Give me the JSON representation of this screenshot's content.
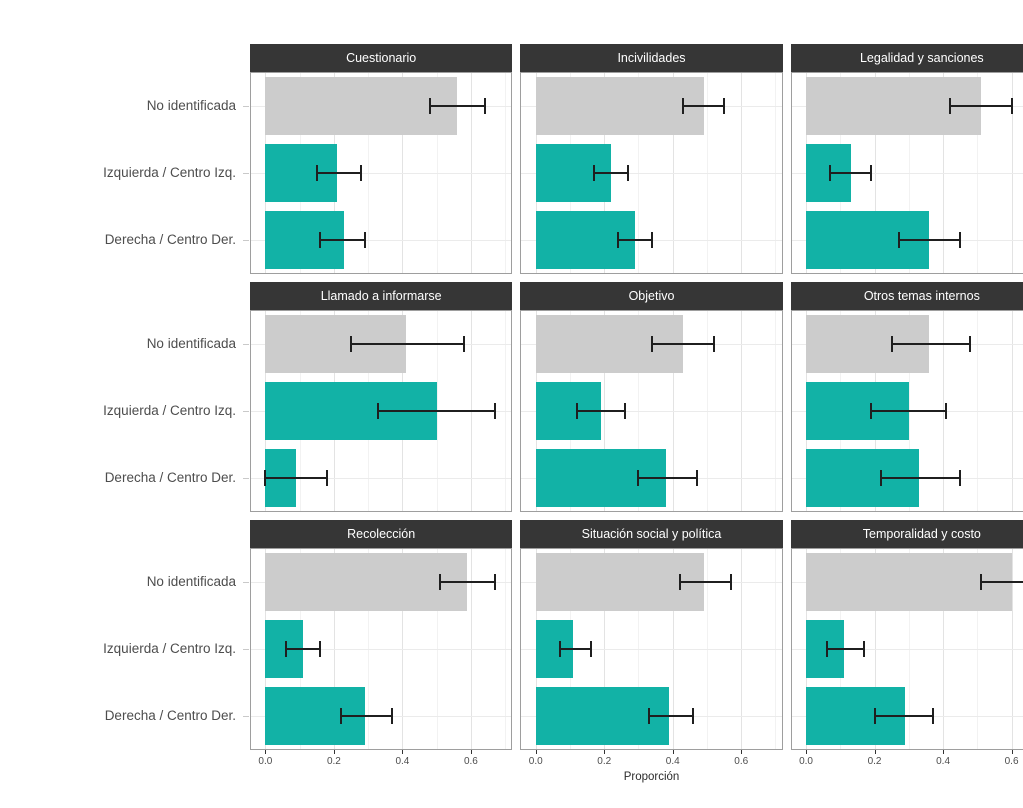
{
  "chart_data": {
    "type": "bar",
    "orientation": "horizontal",
    "title": "",
    "xlabel": "Proporción",
    "ylabel": "",
    "legend_position": "none",
    "grid": true,
    "x_ticks": [
      "0.0",
      "0.2",
      "0.4",
      "0.6"
    ],
    "x_tick_values": [
      0,
      0.2,
      0.4,
      0.6
    ],
    "x_minor_tick_values": [
      0.1,
      0.3,
      0.5,
      0.7
    ],
    "xlim": [
      -0.042,
      0.718
    ],
    "categories": [
      "No identificada",
      "Izquierda / Centro Izq.",
      "Derecha / Centro Der."
    ],
    "facets": [
      {
        "title": "Cuestionario",
        "bars": [
          {
            "category": "No identificada",
            "value": 0.56,
            "ci_low": 0.48,
            "ci_high": 0.64
          },
          {
            "category": "Izquierda / Centro Izq.",
            "value": 0.21,
            "ci_low": 0.15,
            "ci_high": 0.28
          },
          {
            "category": "Derecha / Centro Der.",
            "value": 0.23,
            "ci_low": 0.16,
            "ci_high": 0.29
          }
        ]
      },
      {
        "title": "Incivilidades",
        "bars": [
          {
            "category": "No identificada",
            "value": 0.49,
            "ci_low": 0.43,
            "ci_high": 0.55
          },
          {
            "category": "Izquierda / Centro Izq.",
            "value": 0.22,
            "ci_low": 0.17,
            "ci_high": 0.27
          },
          {
            "category": "Derecha / Centro Der.",
            "value": 0.29,
            "ci_low": 0.24,
            "ci_high": 0.34
          }
        ]
      },
      {
        "title": "Legalidad y sanciones",
        "bars": [
          {
            "category": "No identificada",
            "value": 0.51,
            "ci_low": 0.42,
            "ci_high": 0.6
          },
          {
            "category": "Izquierda / Centro Izq.",
            "value": 0.13,
            "ci_low": 0.07,
            "ci_high": 0.19
          },
          {
            "category": "Derecha / Centro Der.",
            "value": 0.36,
            "ci_low": 0.27,
            "ci_high": 0.45
          }
        ]
      },
      {
        "title": "Llamado a informarse",
        "bars": [
          {
            "category": "No identificada",
            "value": 0.41,
            "ci_low": 0.25,
            "ci_high": 0.58
          },
          {
            "category": "Izquierda / Centro Izq.",
            "value": 0.5,
            "ci_low": 0.33,
            "ci_high": 0.67
          },
          {
            "category": "Derecha / Centro Der.",
            "value": 0.09,
            "ci_low": 0.0,
            "ci_high": 0.18
          }
        ]
      },
      {
        "title": "Objetivo",
        "bars": [
          {
            "category": "No identificada",
            "value": 0.43,
            "ci_low": 0.34,
            "ci_high": 0.52
          },
          {
            "category": "Izquierda / Centro Izq.",
            "value": 0.19,
            "ci_low": 0.12,
            "ci_high": 0.26
          },
          {
            "category": "Derecha / Centro Der.",
            "value": 0.38,
            "ci_low": 0.3,
            "ci_high": 0.47
          }
        ]
      },
      {
        "title": "Otros temas internos",
        "bars": [
          {
            "category": "No identificada",
            "value": 0.36,
            "ci_low": 0.25,
            "ci_high": 0.48
          },
          {
            "category": "Izquierda / Centro Izq.",
            "value": 0.3,
            "ci_low": 0.19,
            "ci_high": 0.41
          },
          {
            "category": "Derecha / Centro Der.",
            "value": 0.33,
            "ci_low": 0.22,
            "ci_high": 0.45
          }
        ]
      },
      {
        "title": "Recolección",
        "bars": [
          {
            "category": "No identificada",
            "value": 0.59,
            "ci_low": 0.51,
            "ci_high": 0.67
          },
          {
            "category": "Izquierda / Centro Izq.",
            "value": 0.11,
            "ci_low": 0.06,
            "ci_high": 0.16
          },
          {
            "category": "Derecha / Centro Der.",
            "value": 0.29,
            "ci_low": 0.22,
            "ci_high": 0.37
          }
        ]
      },
      {
        "title": "Situación social y política",
        "bars": [
          {
            "category": "No identificada",
            "value": 0.49,
            "ci_low": 0.42,
            "ci_high": 0.57
          },
          {
            "category": "Izquierda / Centro Izq.",
            "value": 0.11,
            "ci_low": 0.07,
            "ci_high": 0.16
          },
          {
            "category": "Derecha / Centro Der.",
            "value": 0.39,
            "ci_low": 0.33,
            "ci_high": 0.46
          }
        ]
      },
      {
        "title": "Temporalidad y costo",
        "bars": [
          {
            "category": "No identificada",
            "value": 0.6,
            "ci_low": 0.51,
            "ci_high": 0.69
          },
          {
            "category": "Izquierda / Centro Izq.",
            "value": 0.11,
            "ci_low": 0.06,
            "ci_high": 0.17
          },
          {
            "category": "Derecha / Centro Der.",
            "value": 0.29,
            "ci_low": 0.2,
            "ci_high": 0.37
          }
        ]
      }
    ],
    "colors": {
      "bar_no_identificada": "#cccccc",
      "bar_political": "#12b2a6",
      "strip_background": "#363636",
      "strip_text": "#ffffff",
      "panel_border": "#9e9e9e",
      "grid_major": "#e3e3e3",
      "grid_minor": "#f2f2f2",
      "grid_category": "#ebebeb",
      "error_bar": "#1f1f1f",
      "axis_text": "#4d4d4d"
    }
  }
}
